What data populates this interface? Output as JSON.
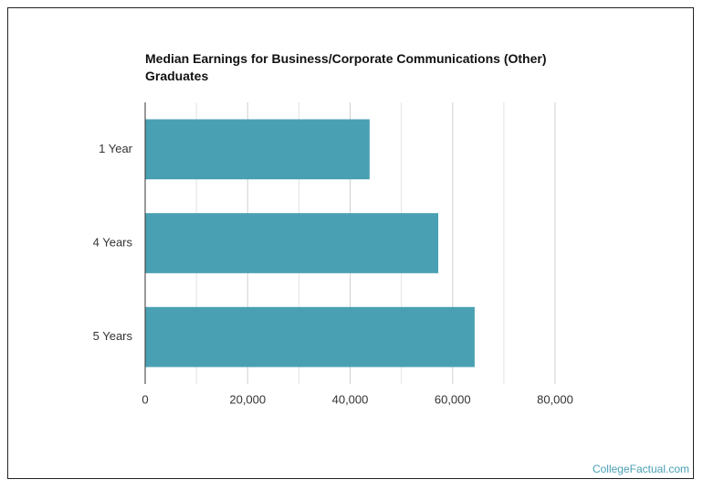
{
  "chart_data": {
    "type": "bar",
    "orientation": "horizontal",
    "title": "Median Earnings for Business/Corporate Communications (Other) Graduates",
    "categories": [
      "1 Year",
      "4 Years",
      "5 Years"
    ],
    "values": [
      43800,
      57200,
      64300
    ],
    "color": "#4aa0b3",
    "xlim": [
      0,
      80000
    ],
    "xticks": [
      0,
      {
        "value": 20000,
        "label": "20,000"
      },
      {
        "value": 40000,
        "label": "40,000"
      },
      {
        "value": 60000,
        "label": "60,000"
      },
      {
        "value": 80000,
        "label": "80,000"
      }
    ],
    "minor_xticks": [
      10000,
      30000,
      50000,
      70000
    ],
    "grid": true,
    "source": "CollegeFactual.com"
  }
}
